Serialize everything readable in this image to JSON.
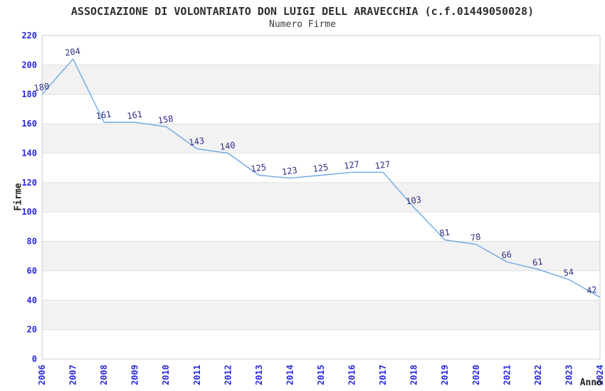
{
  "header": {
    "title": "ASSOCIAZIONE DI VOLONTARIATO DON LUIGI DELL ARAVECCHIA (c.f.01449050028)",
    "subtitle": "Numero Firme"
  },
  "chart_data": {
    "type": "line",
    "title": "ASSOCIAZIONE DI VOLONTARIATO DON LUIGI DELL ARAVECCHIA (c.f.01449050028)",
    "subtitle": "Numero Firme",
    "xlabel": "Anno",
    "ylabel": "Firme",
    "categories": [
      "2006",
      "2007",
      "2008",
      "2009",
      "2010",
      "2011",
      "2012",
      "2013",
      "2014",
      "2015",
      "2016",
      "2017",
      "2018",
      "2019",
      "2020",
      "2021",
      "2022",
      "2023",
      "2024"
    ],
    "values": [
      180,
      204,
      161,
      161,
      158,
      143,
      140,
      125,
      123,
      125,
      127,
      127,
      103,
      81,
      78,
      66,
      61,
      54,
      42
    ],
    "ylim": [
      0,
      220
    ],
    "yticks": [
      0,
      20,
      40,
      60,
      80,
      100,
      120,
      140,
      160,
      180,
      200,
      220
    ],
    "grid": "horizontal-gridlines-with-alternating-bands",
    "legend": "none",
    "data_labels_visible": true,
    "colors": {
      "line": "#6fa8e0",
      "data_label": "#2d2d85",
      "tick_label": "#2828dd",
      "band_gray": "#f2f2f2",
      "band_white": "#ffffff",
      "gridline": "#e0e0e0",
      "plot_border": "#cccccc",
      "title": "#2e2e2e",
      "axis_title": "#1f1f1f"
    }
  }
}
